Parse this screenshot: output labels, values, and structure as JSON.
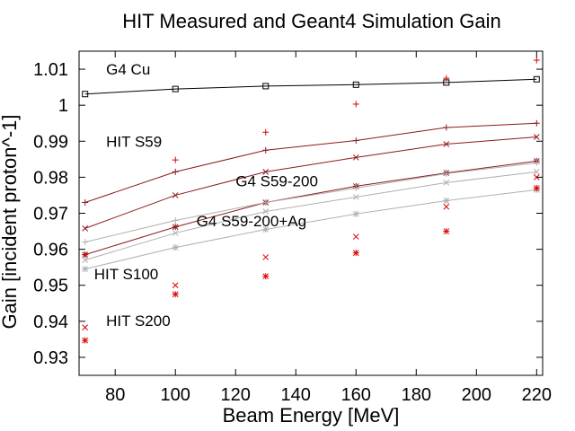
{
  "chart_data": {
    "type": "line",
    "title": "HIT Measured and Geant4 Simulation Gain",
    "xlabel": "Beam Energy [MeV]",
    "ylabel": "Gain [incident proton^-1]",
    "xlim": [
      68,
      222
    ],
    "ylim": [
      0.925,
      1.015
    ],
    "xticks": [
      "80",
      "100",
      "120",
      "140",
      "160",
      "180",
      "200",
      "220"
    ],
    "yticks": [
      "0.93",
      "0.94",
      "0.95",
      "0.96",
      "0.97",
      "0.98",
      "0.99",
      "1",
      "1.01"
    ],
    "grid": false,
    "legend": "none",
    "annotations": [
      {
        "text": "G4 Cu",
        "x": 77,
        "y": 1.0085
      },
      {
        "text": "HIT S59",
        "x": 77,
        "y": 0.9885
      },
      {
        "text": "G4 S59-200",
        "x": 120,
        "y": 0.9775
      },
      {
        "text": "G4 S59-200+Ag",
        "x": 107,
        "y": 0.9664
      },
      {
        "text": "HIT S100",
        "x": 73,
        "y": 0.9517
      },
      {
        "text": "HIT S200",
        "x": 77,
        "y": 0.9387
      }
    ],
    "series": [
      {
        "x": [
          70,
          100,
          130,
          160,
          190,
          220
        ],
        "y": [
          1.0031,
          1.0045,
          1.0053,
          1.0057,
          1.0063,
          1.0072
        ],
        "color": "#000000",
        "marker": "square",
        "line": true
      },
      {
        "x": [
          70,
          100,
          130,
          160,
          190,
          220
        ],
        "y": [
          0.973,
          0.9815,
          0.9875,
          0.9902,
          0.9938,
          0.995
        ],
        "color": "#8b1a1a",
        "marker": "plus",
        "line": true
      },
      {
        "x": [
          70,
          100,
          130,
          160,
          190,
          220
        ],
        "y": [
          0.9658,
          0.975,
          0.9815,
          0.9855,
          0.9892,
          0.9912
        ],
        "color": "#8b1a1a",
        "marker": "x",
        "line": true
      },
      {
        "x": [
          70,
          100,
          130,
          160,
          190,
          220
        ],
        "y": [
          0.9585,
          0.9662,
          0.973,
          0.9775,
          0.9812,
          0.9845
        ],
        "color": "#8b1a1a",
        "marker": "star",
        "line": true
      },
      {
        "x": [
          70,
          100,
          130,
          160,
          190,
          220
        ],
        "y": [
          0.962,
          0.968,
          0.973,
          0.977,
          0.981,
          0.984
        ],
        "color": "#b0b0b0",
        "marker": "plus",
        "line": true
      },
      {
        "x": [
          70,
          100,
          130,
          160,
          190,
          220
        ],
        "y": [
          0.957,
          0.9645,
          0.9705,
          0.9745,
          0.9785,
          0.9815
        ],
        "color": "#b0b0b0",
        "marker": "x",
        "line": true
      },
      {
        "x": [
          70,
          100,
          130,
          160,
          190,
          220
        ],
        "y": [
          0.9545,
          0.9605,
          0.9655,
          0.9698,
          0.9735,
          0.9765
        ],
        "color": "#b0b0b0",
        "marker": "star",
        "line": true
      },
      {
        "x": [
          70,
          100,
          130,
          160,
          190,
          220
        ],
        "y": [
          0.9585,
          0.9848,
          0.9925,
          1.0003,
          1.0075,
          1.0125
        ],
        "color": "#dd0000",
        "marker": "plus",
        "line": false
      },
      {
        "x": [
          70,
          100,
          130,
          160,
          190,
          220
        ],
        "y": [
          0.9383,
          0.95,
          0.9578,
          0.9635,
          0.9718,
          0.98
        ],
        "color": "#dd0000",
        "marker": "x",
        "line": false
      },
      {
        "x": [
          70,
          100,
          130,
          160,
          190,
          220
        ],
        "y": [
          0.9347,
          0.9475,
          0.9525,
          0.959,
          0.965,
          0.977
        ],
        "color": "#dd0000",
        "marker": "star",
        "line": false
      }
    ]
  }
}
